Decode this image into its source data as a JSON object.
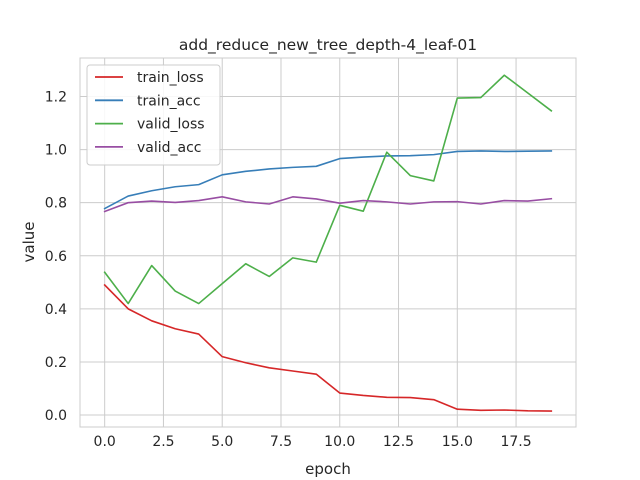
{
  "chart_data": {
    "type": "line",
    "title": "add_reduce_new_tree_depth-4_leaf-01",
    "xlabel": "epoch",
    "ylabel": "value",
    "xlim": [
      -1.05,
      20.05
    ],
    "ylim": [
      -0.045,
      1.345
    ],
    "x": [
      0,
      1,
      2,
      3,
      4,
      5,
      6,
      7,
      8,
      9,
      10,
      11,
      12,
      13,
      14,
      15,
      16,
      17,
      18,
      19
    ],
    "xticks": [
      0.0,
      2.5,
      5.0,
      7.5,
      10.0,
      12.5,
      15.0,
      17.5
    ],
    "xtick_labels": [
      "0.0",
      "2.5",
      "5.0",
      "7.5",
      "10.0",
      "12.5",
      "15.0",
      "17.5"
    ],
    "yticks": [
      0.0,
      0.2,
      0.4,
      0.6,
      0.8,
      1.0,
      1.2
    ],
    "ytick_labels": [
      "0.0",
      "0.2",
      "0.4",
      "0.6",
      "0.8",
      "1.0",
      "1.2"
    ],
    "grid": true,
    "legend_position": "top-left",
    "series": [
      {
        "name": "train_loss",
        "color": "#d62728",
        "values": [
          0.49,
          0.4,
          0.355,
          0.325,
          0.305,
          0.22,
          0.197,
          0.178,
          0.166,
          0.154,
          0.083,
          0.074,
          0.067,
          0.066,
          0.058,
          0.022,
          0.018,
          0.019,
          0.016,
          0.015
        ]
      },
      {
        "name": "train_acc",
        "color": "#377eb8",
        "values": [
          0.778,
          0.825,
          0.845,
          0.86,
          0.868,
          0.905,
          0.918,
          0.927,
          0.933,
          0.937,
          0.966,
          0.972,
          0.976,
          0.977,
          0.981,
          0.993,
          0.995,
          0.993,
          0.994,
          0.995
        ]
      },
      {
        "name": "valid_loss",
        "color": "#4daf4a",
        "values": [
          0.538,
          0.42,
          0.563,
          0.467,
          0.42,
          0.495,
          0.57,
          0.522,
          0.592,
          0.576,
          0.79,
          0.768,
          0.99,
          0.902,
          0.882,
          1.194,
          1.196,
          1.28,
          1.213,
          1.146
        ]
      },
      {
        "name": "valid_acc",
        "color": "#984ea3",
        "values": [
          0.767,
          0.8,
          0.806,
          0.801,
          0.808,
          0.822,
          0.803,
          0.795,
          0.822,
          0.814,
          0.798,
          0.808,
          0.803,
          0.795,
          0.803,
          0.804,
          0.795,
          0.808,
          0.806,
          0.815
        ]
      }
    ]
  }
}
